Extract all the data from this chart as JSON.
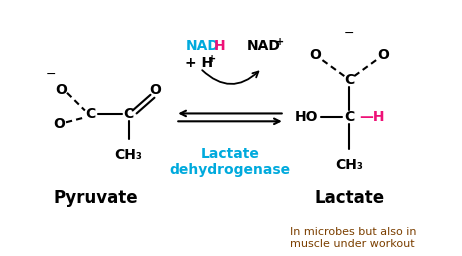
{
  "bg_color": "#ffffff",
  "fig_width": 4.62,
  "fig_height": 2.56,
  "dpi": 100,
  "pyruvate_label": "Pyruvate",
  "lactate_label": "Lactate",
  "enzyme_label": "Lactate\ndehydrogenase",
  "note_label": "In microbes but also in\nmuscle under workout",
  "arrow_color": "#000000",
  "cyan_color": "#00aadd",
  "pink_color": "#ee1177",
  "black": "#000000",
  "dark_brown": "#7b3f00"
}
